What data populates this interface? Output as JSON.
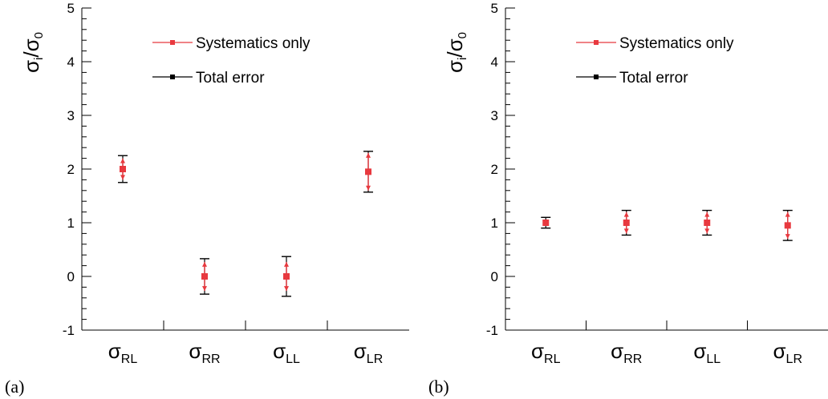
{
  "figure": {
    "legend": {
      "systematics": "Systematics only",
      "total": "Total error"
    },
    "colors": {
      "systematics": "#e8393f",
      "total": "#000000"
    }
  },
  "chart_data": [
    {
      "type": "scatter",
      "panel_label": "(a)",
      "ylabel": {
        "main": "σ",
        "sub": "i",
        "slash": "/",
        "den": "σ",
        "den_sub": "0"
      },
      "ylim": [
        -1,
        5
      ],
      "yticks": [
        "-1",
        "0",
        "1",
        "2",
        "3",
        "4",
        "5"
      ],
      "categories": [
        {
          "main": "σ",
          "sub": "RL"
        },
        {
          "main": "σ",
          "sub": "RR"
        },
        {
          "main": "σ",
          "sub": "LL"
        },
        {
          "main": "σ",
          "sub": "LR"
        }
      ],
      "legend_position": "top-center",
      "grid": false,
      "series": [
        {
          "name": "Systematics only",
          "values": [
            2.0,
            0.0,
            0.0,
            1.95
          ],
          "err": [
            0.2,
            0.27,
            0.27,
            0.35
          ]
        },
        {
          "name": "Total error",
          "values": [
            2.0,
            0.0,
            0.0,
            1.95
          ],
          "err": [
            0.25,
            0.33,
            0.37,
            0.38
          ]
        }
      ]
    },
    {
      "type": "scatter",
      "panel_label": "(b)",
      "ylabel": {
        "main": "σ",
        "sub": "i",
        "slash": "/",
        "den": "σ",
        "den_sub": "0"
      },
      "ylim": [
        -1,
        5
      ],
      "yticks": [
        "-1",
        "0",
        "1",
        "2",
        "3",
        "4",
        "5"
      ],
      "categories": [
        {
          "main": "σ",
          "sub": "RL"
        },
        {
          "main": "σ",
          "sub": "RR"
        },
        {
          "main": "σ",
          "sub": "LL"
        },
        {
          "main": "σ",
          "sub": "LR"
        }
      ],
      "legend_position": "top-center",
      "grid": false,
      "series": [
        {
          "name": "Systematics only",
          "values": [
            1.0,
            1.0,
            1.0,
            0.95
          ],
          "err": [
            0.05,
            0.2,
            0.2,
            0.25
          ]
        },
        {
          "name": "Total error",
          "values": [
            1.0,
            1.0,
            1.0,
            0.95
          ],
          "err": [
            0.1,
            0.23,
            0.23,
            0.28
          ]
        }
      ]
    }
  ]
}
